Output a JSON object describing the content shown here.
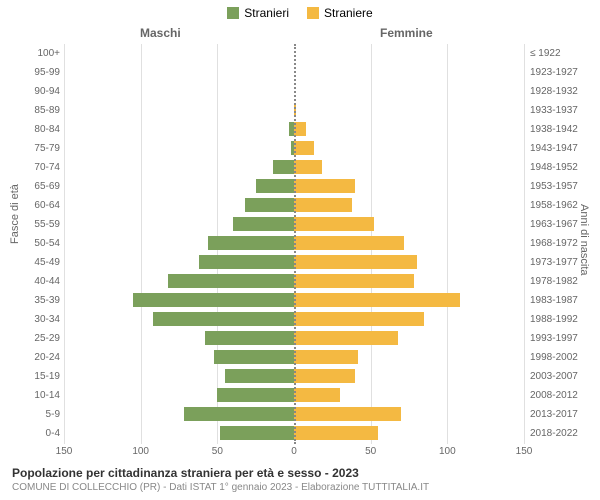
{
  "legend": {
    "male": {
      "label": "Stranieri",
      "color": "#7ba05b"
    },
    "female": {
      "label": "Straniere",
      "color": "#f4b942"
    }
  },
  "col_titles": {
    "male": "Maschi",
    "female": "Femmine"
  },
  "y_left_title": "Fasce di età",
  "y_right_title": "Anni di nascita",
  "title": "Popolazione per cittadinanza straniera per età e sesso - 2023",
  "subtitle": "COMUNE DI COLLECCHIO (PR) - Dati ISTAT 1° gennaio 2023 - Elaborazione TUTTITALIA.IT",
  "chart": {
    "type": "population-pyramid",
    "xlim": 150,
    "xtick_step": 50,
    "bar_color_male": "#7ba05b",
    "bar_color_female": "#f4b942",
    "background_color": "#ffffff",
    "grid_color": "#e0e0e0",
    "label_fontsize": 10,
    "rows": [
      {
        "age": "100+",
        "birth": "≤ 1922",
        "m": 0,
        "f": 0
      },
      {
        "age": "95-99",
        "birth": "1923-1927",
        "m": 0,
        "f": 0
      },
      {
        "age": "90-94",
        "birth": "1928-1932",
        "m": 0,
        "f": 0
      },
      {
        "age": "85-89",
        "birth": "1933-1937",
        "m": 0,
        "f": 1
      },
      {
        "age": "80-84",
        "birth": "1938-1942",
        "m": 3,
        "f": 8
      },
      {
        "age": "75-79",
        "birth": "1943-1947",
        "m": 2,
        "f": 13
      },
      {
        "age": "70-74",
        "birth": "1948-1952",
        "m": 14,
        "f": 18
      },
      {
        "age": "65-69",
        "birth": "1953-1957",
        "m": 25,
        "f": 40
      },
      {
        "age": "60-64",
        "birth": "1958-1962",
        "m": 32,
        "f": 38
      },
      {
        "age": "55-59",
        "birth": "1963-1967",
        "m": 40,
        "f": 52
      },
      {
        "age": "50-54",
        "birth": "1968-1972",
        "m": 56,
        "f": 72
      },
      {
        "age": "45-49",
        "birth": "1973-1977",
        "m": 62,
        "f": 80
      },
      {
        "age": "40-44",
        "birth": "1978-1982",
        "m": 82,
        "f": 78
      },
      {
        "age": "35-39",
        "birth": "1983-1987",
        "m": 105,
        "f": 108
      },
      {
        "age": "30-34",
        "birth": "1988-1992",
        "m": 92,
        "f": 85
      },
      {
        "age": "25-29",
        "birth": "1993-1997",
        "m": 58,
        "f": 68
      },
      {
        "age": "20-24",
        "birth": "1998-2002",
        "m": 52,
        "f": 42
      },
      {
        "age": "15-19",
        "birth": "2003-2007",
        "m": 45,
        "f": 40
      },
      {
        "age": "10-14",
        "birth": "2008-2012",
        "m": 50,
        "f": 30
      },
      {
        "age": "5-9",
        "birth": "2013-2017",
        "m": 72,
        "f": 70
      },
      {
        "age": "0-4",
        "birth": "2018-2022",
        "m": 48,
        "f": 55
      }
    ]
  }
}
